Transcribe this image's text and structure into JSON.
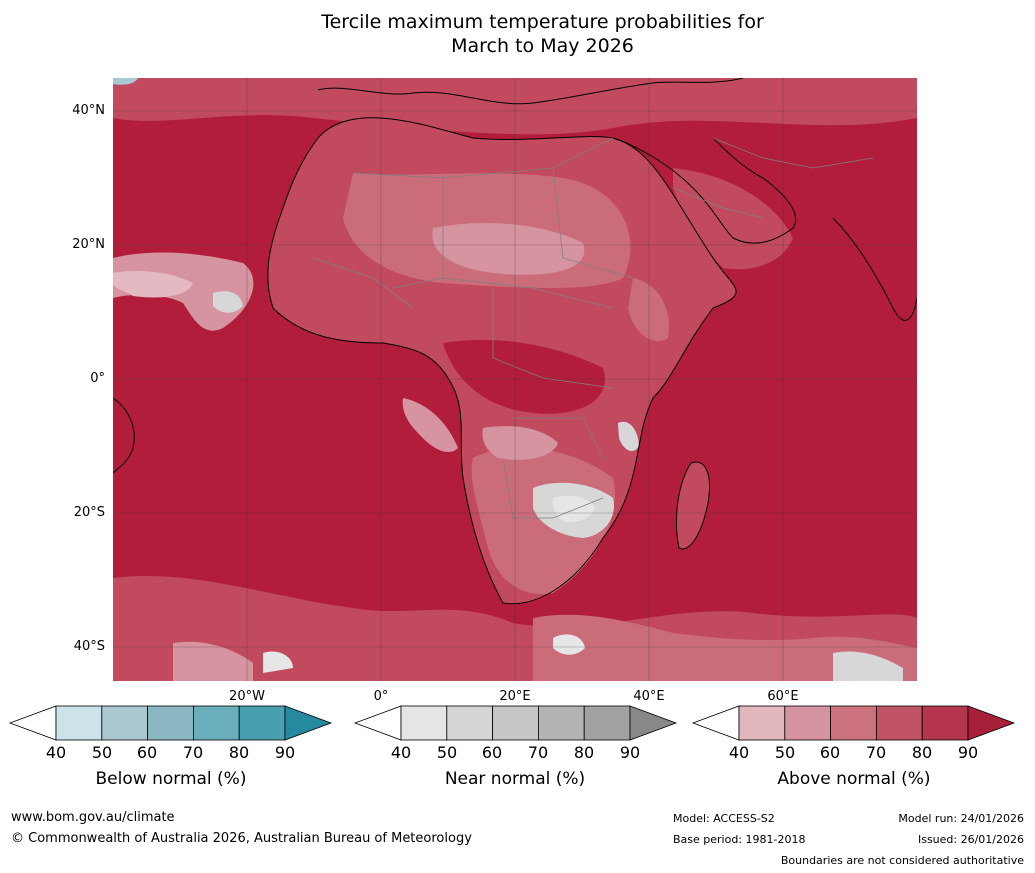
{
  "title_line1": "Tercile maximum temperature probabilities for",
  "title_line2": "March to May 2026",
  "map": {
    "lat_labels": [
      "40°N",
      "20°N",
      "0°",
      "20°S",
      "40°S"
    ],
    "lon_labels": [
      "20°W",
      "0°",
      "20°E",
      "40°E",
      "60°E"
    ],
    "colors": {
      "above_70": "#c25065",
      "above_80": "#b22b45",
      "above_60": "#cb6c7b",
      "above_50": "#d693a0",
      "above_40": "#e4b9c2",
      "near_50": "#d7d7d7",
      "near_40": "#e6e6e6",
      "below_40": "#a8c8d2"
    }
  },
  "legends": [
    {
      "name": "Below normal (%)",
      "ticks": [
        "40",
        "50",
        "60",
        "70",
        "80",
        "90"
      ],
      "colors": [
        "#ffffff",
        "#cde3ea",
        "#a9c8cf",
        "#8ab7c2",
        "#6aaebb",
        "#479fb0",
        "#2589a0"
      ]
    },
    {
      "name": "Near normal (%)",
      "ticks": [
        "40",
        "50",
        "60",
        "70",
        "80",
        "90"
      ],
      "colors": [
        "#ffffff",
        "#e5e5e5",
        "#d5d5d5",
        "#c6c6c6",
        "#b4b4b4",
        "#a2a2a2",
        "#888888"
      ]
    },
    {
      "name": "Above normal (%)",
      "ticks": [
        "40",
        "50",
        "60",
        "70",
        "80",
        "90"
      ],
      "colors": [
        "#ffffff",
        "#e2b7be",
        "#d694a0",
        "#cb727d",
        "#c05466",
        "#b4354d",
        "#a81f3a"
      ]
    }
  ],
  "footer": {
    "url": "www.bom.gov.au/climate",
    "copyright": "© Commonwealth of Australia 2026, Australian Bureau of Meteorology",
    "model": "Model: ACCESS-S2",
    "base_period": "Base period: 1981-2018",
    "model_run": "Model run: 24/01/2026",
    "issued": "Issued: 26/01/2026",
    "disclaimer": "Boundaries are not considered authoritative"
  }
}
